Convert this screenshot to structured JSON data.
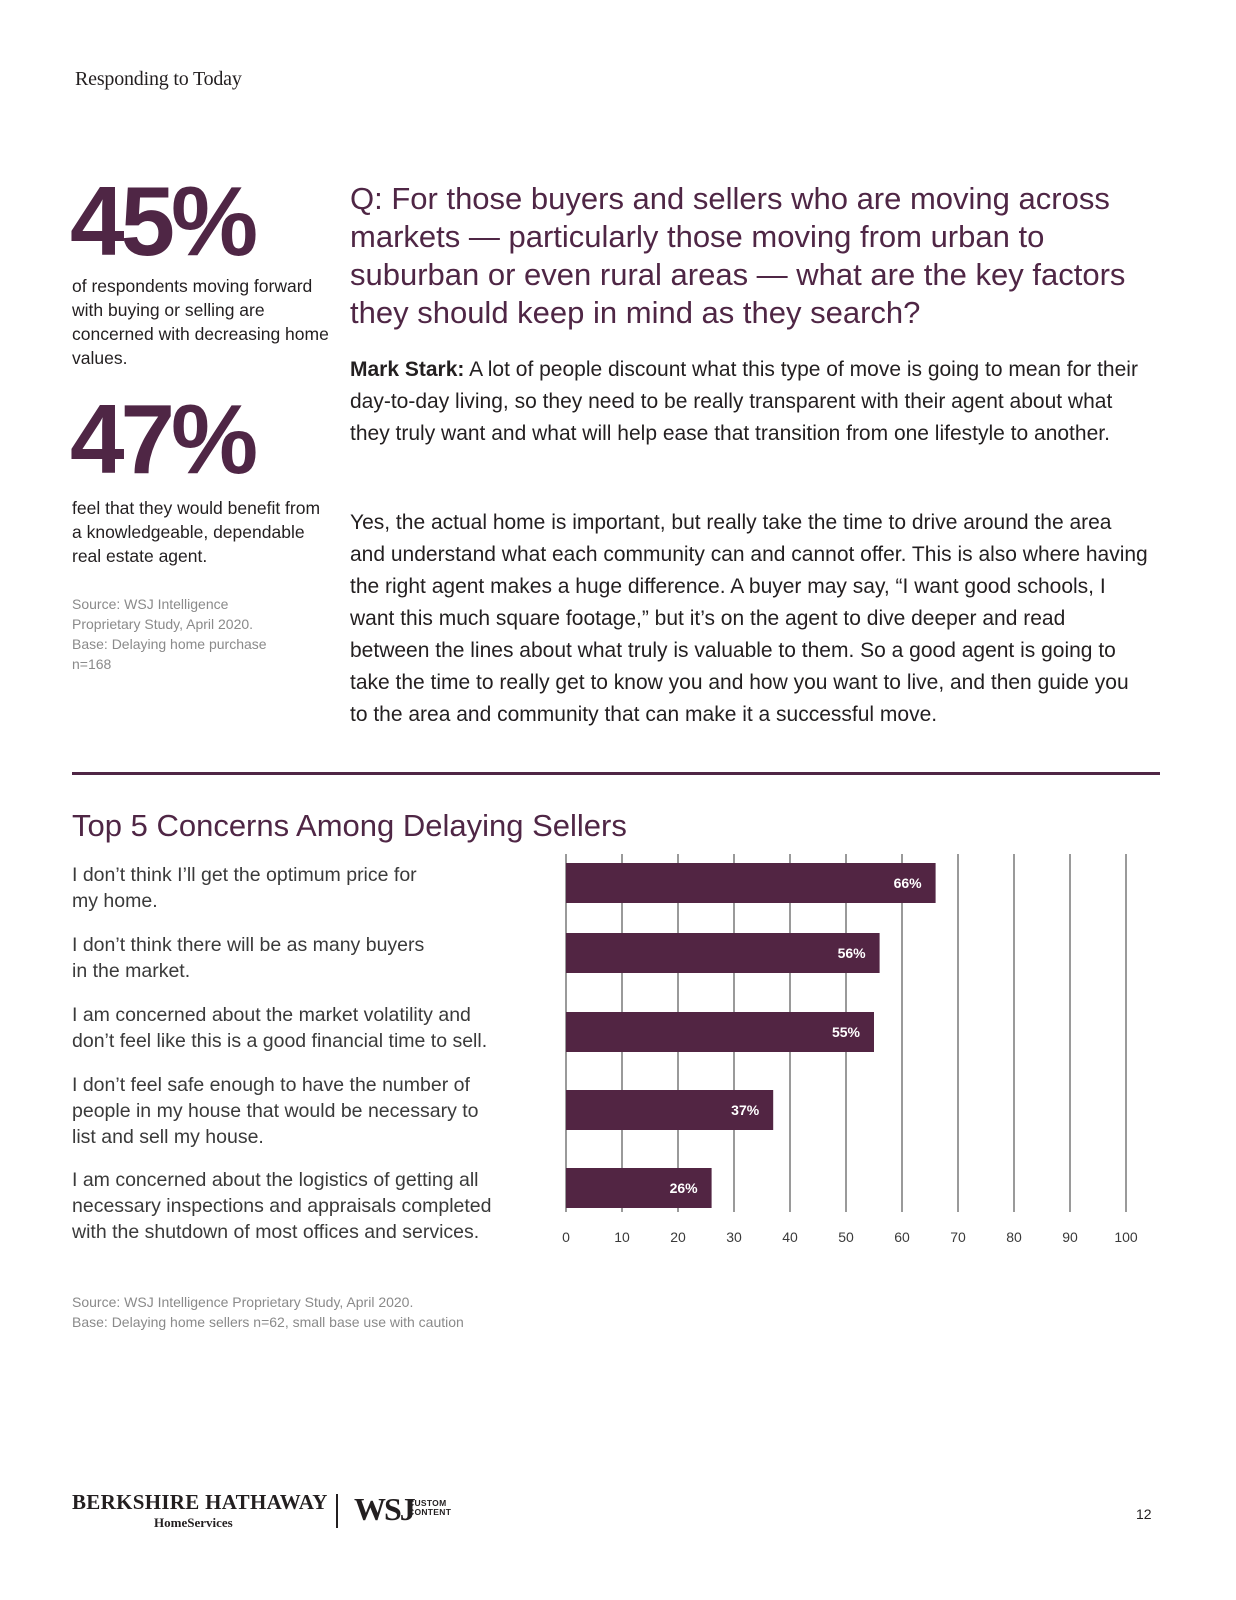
{
  "header": {
    "section_title": "Responding to Today"
  },
  "stats": [
    {
      "value": "45%",
      "description": "of respondents moving forward with buying or selling are concerned with decreasing home values."
    },
    {
      "value": "47%",
      "description": "feel that they would benefit from a knowledgeable, dependable real estate agent."
    }
  ],
  "stats_source": {
    "line1": "Source: WSJ Intelligence",
    "line2": "Proprietary Study, April 2020.",
    "line3": "Base: Delaying home purchase",
    "line4": "n=168"
  },
  "qa": {
    "question": "Q: For those buyers and sellers who are moving across markets — particularly those moving from urban to suburban or even rural areas — what are the key factors they should keep in mind as they search?",
    "speaker": "Mark Stark:",
    "answer_p1": " A lot of people discount what this type of move is going to mean for their day-to-day living, so they need to be really transparent with their agent about what they truly want and what will help ease that transition from one lifestyle to another.",
    "answer_p2": "Yes, the actual home is important, but really take the time to drive around the area and understand what each community can and cannot offer. This is also where having the right agent makes a huge difference. A buyer may say, “I want good schools, I want this much square footage,” but it’s on the agent to dive deeper and read between the lines about what truly is valuable to them. So a good agent is going to take the time to really get to know you and how you want to live, and then guide you to the area and community that can make it a successful move."
  },
  "chart_data": {
    "type": "bar",
    "orientation": "horizontal",
    "title": "Top 5 Concerns Among Delaying Sellers",
    "categories": [
      "I don’t think I’ll get the optimum price for my home.",
      "I don’t think there will be as many buyers in the market.",
      "I am concerned about the market volatility and don’t feel like this is a good financial time to sell.",
      "I don’t feel safe enough to have the number of people in my house that would be necessary to list and sell my house.",
      "I am concerned about the logistics of getting all necessary inspections and appraisals completed with the shutdown of most offices and services."
    ],
    "values": [
      66,
      56,
      55,
      37,
      26
    ],
    "data_labels": [
      "66%",
      "56%",
      "55%",
      "37%",
      "26%"
    ],
    "xlim": [
      0,
      100
    ],
    "x_ticks": [
      "0",
      "10",
      "20",
      "30",
      "40",
      "50",
      "60",
      "70",
      "80",
      "90",
      "100"
    ],
    "grid": true,
    "bar_color": "#522543",
    "label_color": "#ffffff"
  },
  "concern_lines": [
    [
      "I don’t think I’ll get the optimum price for",
      "my home."
    ],
    [
      "I don’t think there will be as many buyers",
      "in the market."
    ],
    [
      "I am concerned about the market volatility and",
      "don’t feel like this is a good financial time to sell."
    ],
    [
      "I don’t feel safe enough to have the number of",
      "people in my house that would be necessary to",
      "list and sell my house."
    ],
    [
      "I am concerned about the logistics of getting all",
      "necessary inspections and appraisals completed",
      "with the shutdown of most offices and services."
    ]
  ],
  "chart_source": {
    "line1": "Source: WSJ Intelligence Proprietary Study, April 2020.",
    "line2": "Base: Delaying home sellers n=62, small base use with caution"
  },
  "footer": {
    "logo_bh": "BERKSHIRE HATHAWAY",
    "logo_hs": "HomeServices",
    "logo_wsj": "WSJ",
    "logo_custom_1": "CUSTOM",
    "logo_custom_2": "CONTENT",
    "page_number": "12"
  },
  "colors": {
    "accent": "#4f2645",
    "text": "#231f20",
    "muted": "#8a8a8a",
    "grid": "#9a9a9a"
  }
}
